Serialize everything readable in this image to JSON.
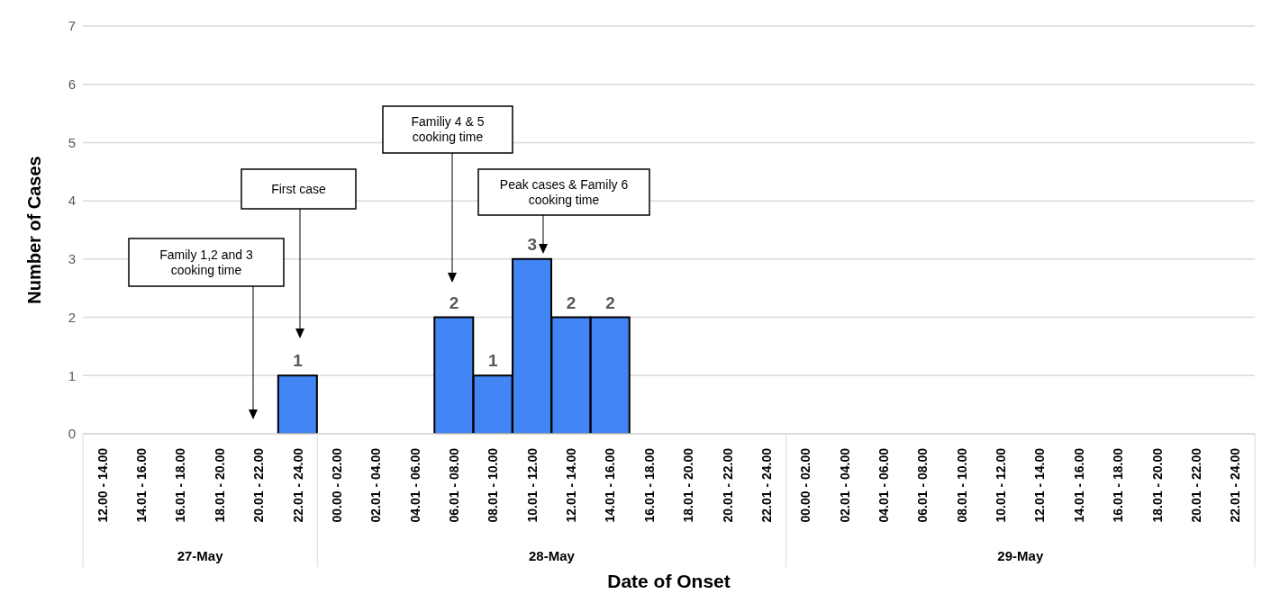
{
  "chart_data": {
    "type": "bar",
    "xlabel": "Date of Onset",
    "ylabel": "Number of Cases",
    "categories": [
      "12.00 - 14.00",
      "14.01 - 16.00",
      "16.01 - 18.00",
      "18.01 - 20.00",
      "20.01 - 22.00",
      "22.01 - 24.00",
      "00.00 - 02.00",
      "02.01 - 04.00",
      "04.01 - 06.00",
      "06.01 - 08.00",
      "08.01 - 10.00",
      "10.01 - 12.00",
      "12.01 - 14.00",
      "14.01 - 16.00",
      "16.01 - 18.00",
      "18.01 - 20.00",
      "20.01 - 22.00",
      "22.01 - 24.00",
      "00.00 - 02.00",
      "02.01 - 04.00",
      "04.01 - 06.00",
      "06.01 - 08.00",
      "08.01 - 10.00",
      "10.01 - 12.00",
      "12.01 - 14.00",
      "14.01 - 16.00",
      "16.01 - 18.00",
      "18.01 - 20.00",
      "20.01 - 22.00",
      "22.01 - 24.00"
    ],
    "values": [
      0,
      0,
      0,
      0,
      0,
      1,
      0,
      0,
      0,
      2,
      1,
      3,
      2,
      2,
      0,
      0,
      0,
      0,
      0,
      0,
      0,
      0,
      0,
      0,
      0,
      0,
      0,
      0,
      0,
      0
    ],
    "value_labels": [
      null,
      null,
      null,
      null,
      null,
      "1",
      null,
      null,
      null,
      "2",
      "1",
      "3",
      "2",
      "2",
      null,
      null,
      null,
      null,
      null,
      null,
      null,
      null,
      null,
      null,
      null,
      null,
      null,
      null,
      null,
      null
    ],
    "color": "#4285f4",
    "ylim": [
      0,
      7
    ],
    "yticks": [
      0,
      1,
      2,
      3,
      4,
      5,
      6,
      7
    ],
    "grid": "y",
    "annotations": [
      "27-May",
      "28-May",
      "29-May",
      "Family 1,2 and 3 cooking time",
      "First case",
      "Familiy 4 & 5 cooking time",
      "Peak cases & Family 6 cooking time"
    ]
  }
}
